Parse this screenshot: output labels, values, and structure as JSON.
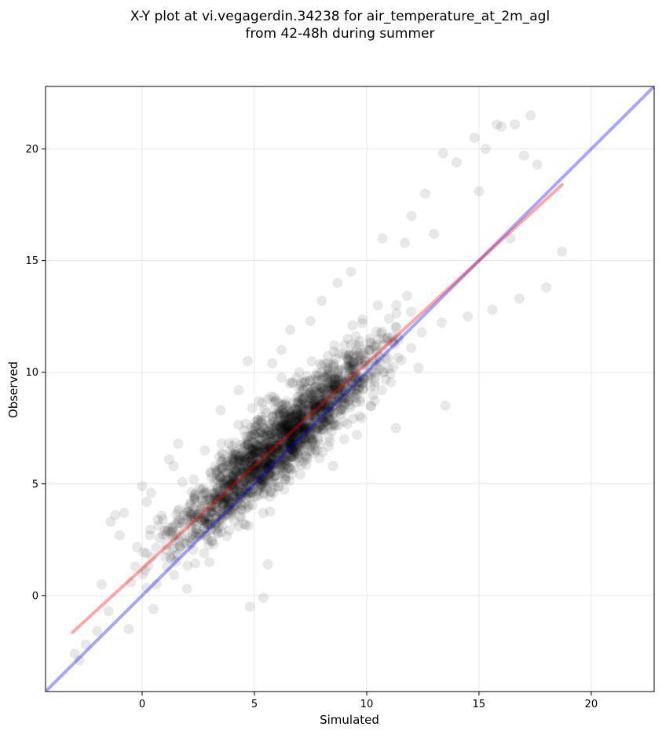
{
  "title": {
    "line1": "X-Y plot at vi.vegagerdin.34238 for air_temperature_at_2m_agl",
    "line2": "from 42-48h during summer"
  },
  "chart_data": {
    "type": "scatter",
    "xlabel": "Simulated",
    "ylabel": "Observed",
    "xlim": [
      -4.3,
      22.8
    ],
    "ylim": [
      -4.3,
      22.8
    ],
    "xticks": [
      0,
      5,
      10,
      15,
      20
    ],
    "yticks": [
      0,
      5,
      10,
      15,
      20
    ],
    "grid": true,
    "point_color": "#000000",
    "point_alpha": 0.09,
    "identity_line": {
      "color": "#0000ff",
      "from": [
        -4.3,
        -4.3
      ],
      "to": [
        22.8,
        22.8
      ]
    },
    "fit_line": {
      "color": "#ff0000",
      "from": [
        -3.1,
        -1.65
      ],
      "to": [
        18.7,
        18.4
      ]
    },
    "sample_points": [
      [
        -3.0,
        -2.6
      ],
      [
        -2.8,
        -2.9
      ],
      [
        -2.5,
        -2.2
      ],
      [
        -2.0,
        -1.6
      ],
      [
        -1.8,
        0.5
      ],
      [
        -1.5,
        -0.7
      ],
      [
        -1.4,
        3.3
      ],
      [
        -1.2,
        3.6
      ],
      [
        -1.0,
        2.7
      ],
      [
        -0.8,
        3.7
      ],
      [
        -0.6,
        -1.5
      ],
      [
        -0.5,
        0.6
      ],
      [
        -0.3,
        1.3
      ],
      [
        0.0,
        4.9
      ],
      [
        0.2,
        4.2
      ],
      [
        0.4,
        4.6
      ],
      [
        0.5,
        -0.6
      ],
      [
        0.7,
        3.4
      ],
      [
        1.0,
        2.9
      ],
      [
        1.2,
        6.1
      ],
      [
        1.4,
        5.8
      ],
      [
        1.6,
        6.8
      ],
      [
        2.0,
        0.3
      ],
      [
        2.3,
        5.2
      ],
      [
        2.8,
        6.5
      ],
      [
        3.0,
        1.5
      ],
      [
        3.3,
        5.2
      ],
      [
        3.5,
        8.3
      ],
      [
        4.0,
        6.7
      ],
      [
        4.3,
        9.2
      ],
      [
        4.7,
        10.5
      ],
      [
        4.8,
        -0.5
      ],
      [
        5.2,
        8.7
      ],
      [
        5.4,
        -0.1
      ],
      [
        5.6,
        1.4
      ],
      [
        5.8,
        10.4
      ],
      [
        6.2,
        11.0
      ],
      [
        6.6,
        11.9
      ],
      [
        7.0,
        10.0
      ],
      [
        7.5,
        12.3
      ],
      [
        7.8,
        6.5
      ],
      [
        8.0,
        13.2
      ],
      [
        8.5,
        5.8
      ],
      [
        8.7,
        14.0
      ],
      [
        9.0,
        7.0
      ],
      [
        9.3,
        14.5
      ],
      [
        9.8,
        12.2
      ],
      [
        10.2,
        8.5
      ],
      [
        10.5,
        13.0
      ],
      [
        10.7,
        16.0
      ],
      [
        11.0,
        12.4
      ],
      [
        11.3,
        7.5
      ],
      [
        11.7,
        15.8
      ],
      [
        12.0,
        17.0
      ],
      [
        12.3,
        10.2
      ],
      [
        12.6,
        18.0
      ],
      [
        13.0,
        16.2
      ],
      [
        13.4,
        19.8
      ],
      [
        13.5,
        8.5
      ],
      [
        14.0,
        19.4
      ],
      [
        14.5,
        12.5
      ],
      [
        14.8,
        20.5
      ],
      [
        15.0,
        18.1
      ],
      [
        15.3,
        20.0
      ],
      [
        15.6,
        12.8
      ],
      [
        15.8,
        21.1
      ],
      [
        16.0,
        21.0
      ],
      [
        16.4,
        16.0
      ],
      [
        16.6,
        21.1
      ],
      [
        16.8,
        13.3
      ],
      [
        17.0,
        19.7
      ],
      [
        17.3,
        21.5
      ],
      [
        17.6,
        19.3
      ],
      [
        18.0,
        13.8
      ],
      [
        18.7,
        15.4
      ]
    ]
  }
}
